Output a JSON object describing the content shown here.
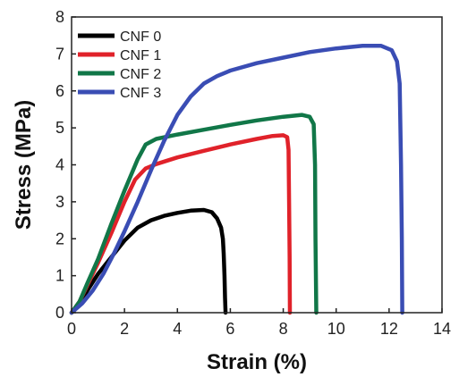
{
  "chart_data": {
    "type": "line",
    "xlabel": "Strain (%)",
    "ylabel": "Stress (MPa)",
    "xlim": [
      0,
      14
    ],
    "ylim": [
      0,
      8
    ],
    "xticks": [
      0,
      2,
      4,
      6,
      8,
      10,
      12,
      14
    ],
    "yticks": [
      0,
      1,
      2,
      3,
      4,
      5,
      6,
      7,
      8
    ],
    "grid": false,
    "legend_position": "top-left",
    "series": [
      {
        "name": "CNF 0",
        "color": "#000000",
        "x": [
          0,
          0.3,
          0.6,
          1.0,
          1.5,
          2.0,
          2.5,
          3.0,
          3.5,
          4.0,
          4.5,
          5.0,
          5.3,
          5.5,
          5.65,
          5.72,
          5.75,
          5.78,
          5.8,
          5.82
        ],
        "y": [
          0,
          0.25,
          0.6,
          1.05,
          1.5,
          1.95,
          2.3,
          2.5,
          2.62,
          2.7,
          2.76,
          2.78,
          2.72,
          2.55,
          2.3,
          2.0,
          1.6,
          1.0,
          0.4,
          0
        ]
      },
      {
        "name": "CNF 1",
        "color": "#e0222a",
        "x": [
          0,
          0.3,
          0.6,
          1.0,
          1.5,
          2.0,
          2.4,
          2.8,
          3.2,
          4.0,
          5.0,
          6.0,
          7.0,
          7.6,
          8.0,
          8.15,
          8.2,
          8.22,
          8.24,
          8.25
        ],
        "y": [
          0,
          0.3,
          0.75,
          1.35,
          2.15,
          3.0,
          3.6,
          3.9,
          4.02,
          4.2,
          4.38,
          4.55,
          4.7,
          4.78,
          4.8,
          4.75,
          4.4,
          3.0,
          1.5,
          0
        ]
      },
      {
        "name": "CNF 2",
        "color": "#117748",
        "x": [
          0,
          0.3,
          0.6,
          1.0,
          1.5,
          2.0,
          2.5,
          2.8,
          3.2,
          4.0,
          5.0,
          6.0,
          7.0,
          8.0,
          8.7,
          9.0,
          9.15,
          9.2,
          9.22,
          9.25
        ],
        "y": [
          0,
          0.3,
          0.8,
          1.45,
          2.4,
          3.3,
          4.15,
          4.55,
          4.7,
          4.82,
          4.95,
          5.08,
          5.2,
          5.3,
          5.35,
          5.3,
          5.1,
          4.0,
          2.0,
          0
        ]
      },
      {
        "name": "CNF 3",
        "color": "#3a4db4",
        "x": [
          0,
          0.4,
          0.8,
          1.2,
          1.6,
          2.0,
          2.5,
          3.0,
          3.5,
          4.0,
          4.5,
          5.0,
          5.5,
          6.0,
          7.0,
          8.0,
          9.0,
          10.0,
          11.0,
          11.7,
          12.1,
          12.3,
          12.4,
          12.45,
          12.48,
          12.5
        ],
        "y": [
          0,
          0.25,
          0.6,
          1.05,
          1.6,
          2.2,
          3.0,
          3.85,
          4.65,
          5.35,
          5.85,
          6.2,
          6.4,
          6.55,
          6.75,
          6.9,
          7.05,
          7.15,
          7.22,
          7.22,
          7.1,
          6.8,
          6.2,
          4.0,
          2.0,
          0
        ]
      }
    ]
  }
}
